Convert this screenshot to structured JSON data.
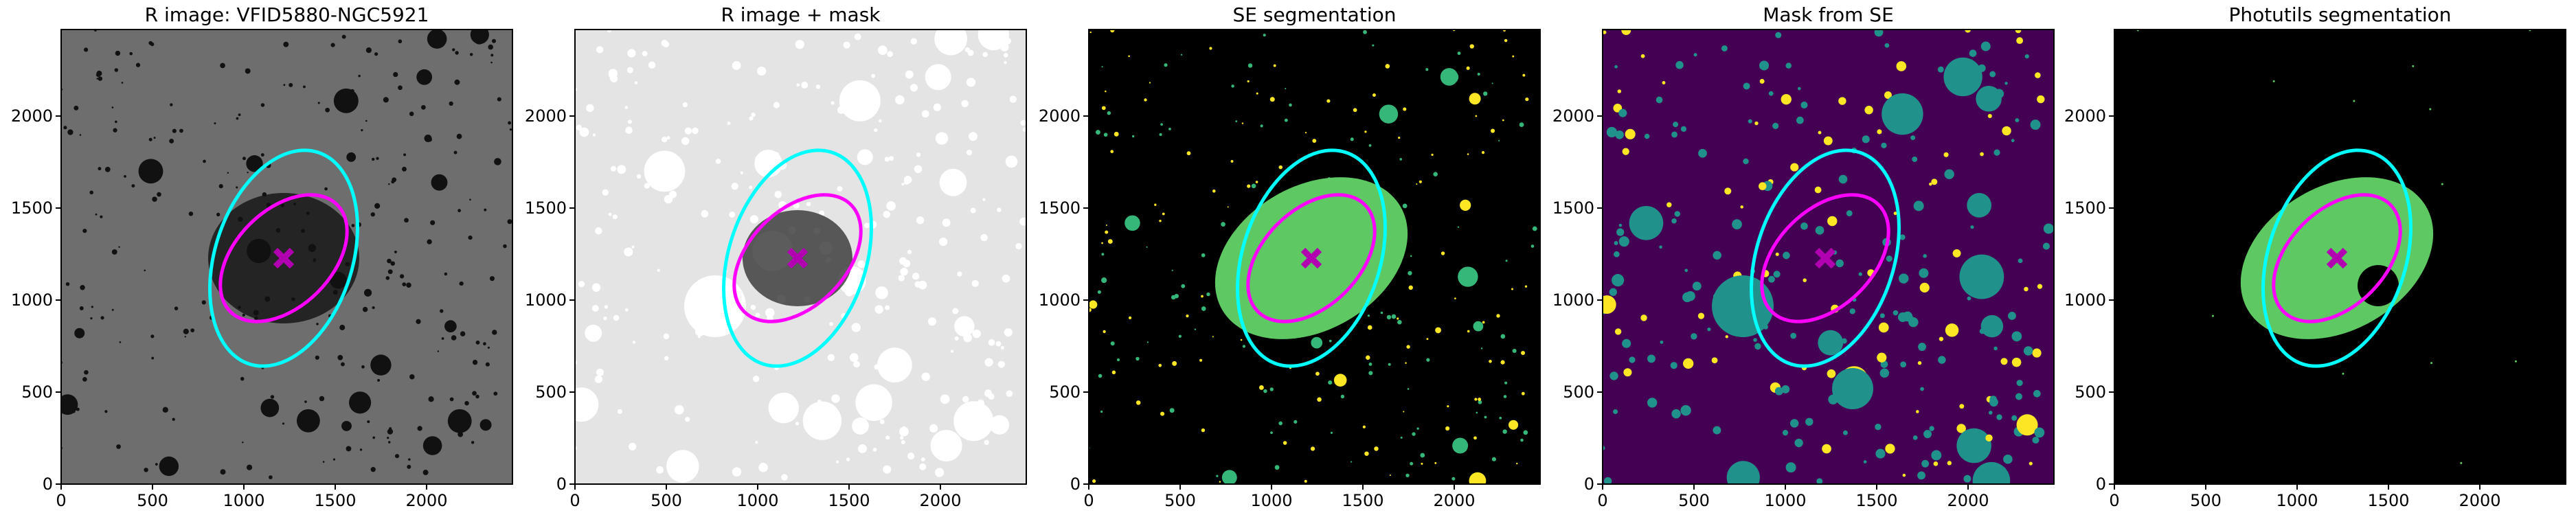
{
  "chart_data": [
    {
      "type": "image",
      "title": "R image: VFID5880-NGC5921",
      "xlim": [
        0,
        2470
      ],
      "ylim": [
        0,
        2470
      ],
      "xticks": [
        0,
        500,
        1000,
        1500,
        2000
      ],
      "yticks": [
        0,
        500,
        1000,
        1500,
        2000
      ]
    },
    {
      "type": "image",
      "title": "R image + mask",
      "xlim": [
        0,
        2470
      ],
      "ylim": [
        0,
        2470
      ],
      "xticks": [
        0,
        500,
        1000,
        1500,
        2000
      ],
      "yticks": [
        0,
        500,
        1000,
        1500,
        2000
      ]
    },
    {
      "type": "image",
      "title": "SE segmentation",
      "xlim": [
        0,
        2470
      ],
      "ylim": [
        0,
        2470
      ],
      "xticks": [
        0,
        500,
        1000,
        1500,
        2000
      ],
      "yticks": [
        0,
        500,
        1000,
        1500,
        2000
      ]
    },
    {
      "type": "image",
      "title": "Mask from SE",
      "xlim": [
        0,
        2470
      ],
      "ylim": [
        0,
        2470
      ],
      "xticks": [
        0,
        500,
        1000,
        1500,
        2000
      ],
      "yticks": [
        0,
        500,
        1000,
        1500,
        2000
      ]
    },
    {
      "type": "image",
      "title": "Photutils segmentation",
      "xlim": [
        0,
        2470
      ],
      "ylim": [
        0,
        2470
      ],
      "xticks": [
        0,
        500,
        1000,
        1500,
        2000
      ],
      "yticks": [
        0,
        500,
        1000,
        1500,
        2000
      ]
    }
  ]
}
